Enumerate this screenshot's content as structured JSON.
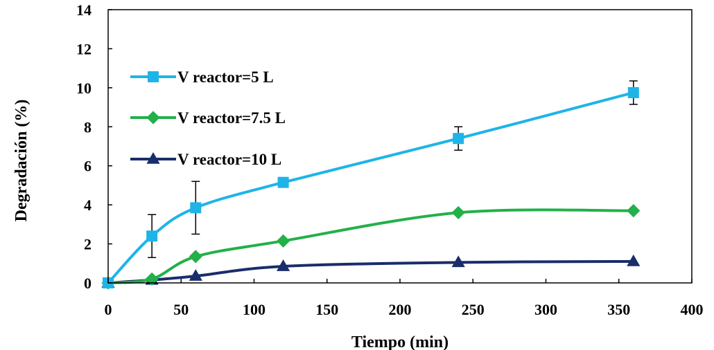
{
  "chart_data": {
    "type": "line",
    "title": "",
    "xlabel": "Tiempo (min)",
    "ylabel": "Degradación (%)",
    "xlim": [
      0,
      400
    ],
    "ylim": [
      0,
      14
    ],
    "x_ticks": [
      0,
      50,
      100,
      150,
      200,
      250,
      300,
      350,
      400
    ],
    "y_ticks": [
      0,
      2,
      4,
      6,
      8,
      10,
      12,
      14
    ],
    "grid": false,
    "legend_position": "top-left",
    "x": [
      0,
      30,
      60,
      120,
      240,
      360
    ],
    "series": [
      {
        "name": "V reactor=5 L",
        "marker": "square",
        "color": "#1eb4e8",
        "values": [
          0,
          2.4,
          3.85,
          5.15,
          7.4,
          9.75
        ],
        "error": [
          0,
          1.1,
          1.35,
          0,
          0.6,
          0.6
        ]
      },
      {
        "name": "V reactor=7.5 L",
        "marker": "diamond",
        "color": "#22b04a",
        "values": [
          0,
          0.2,
          1.35,
          2.15,
          3.6,
          3.7
        ],
        "error": null
      },
      {
        "name": "V reactor=10 L",
        "marker": "triangle",
        "color": "#1a2d6b",
        "values": [
          0,
          0.15,
          0.35,
          0.85,
          1.05,
          1.1
        ],
        "error": null
      }
    ]
  }
}
